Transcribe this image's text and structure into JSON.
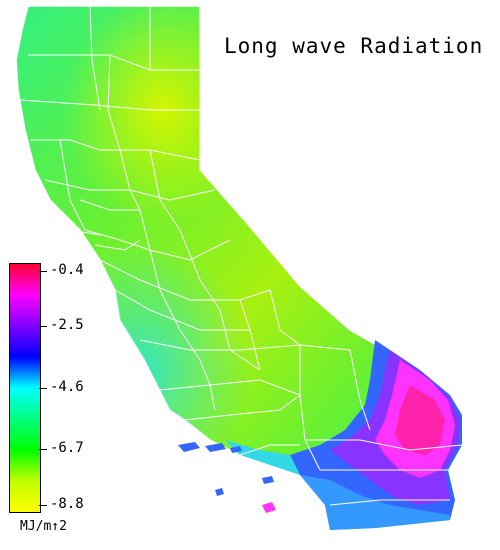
{
  "title": "Long wave Radiation",
  "legend": {
    "ticks": [
      "-0.4",
      "-2.5",
      "-4.6",
      "-6.7",
      "-8.8"
    ],
    "unit": "MJ/m↑2",
    "colors": [
      "#ff0033",
      "#ff00ff",
      "#8000ff",
      "#0000ff",
      "#00ffff",
      "#00ff80",
      "#00ff00",
      "#c0ff00",
      "#ffff00"
    ]
  },
  "map_colors": {
    "green": "#66f033",
    "yellowgreen": "#c8f500",
    "cyan_green": "#33f0a0",
    "cyan": "#33d9e6",
    "blue": "#3366ff",
    "purple": "#8833ff",
    "magenta": "#ff33ff",
    "pink": "#ff22aa",
    "border": "#ffffff"
  }
}
